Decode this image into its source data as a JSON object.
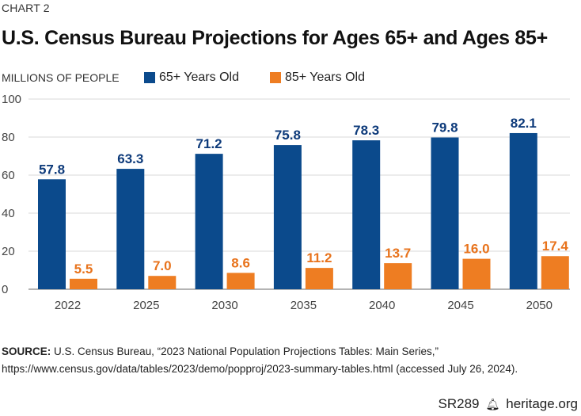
{
  "kicker": "CHART 2",
  "title": "U.S. Census Bureau Projections for Ages 65+ and Ages 85+",
  "unit_label": "MILLIONS OF PEOPLE",
  "colors": {
    "series1": "#0b4a8c",
    "series2": "#ee7d22",
    "label1": "#0d3a7a",
    "label2": "#e8731c",
    "grid": "#e6e6e6",
    "axis": "#888888"
  },
  "chart_data": {
    "type": "bar",
    "title": "U.S. Census Bureau Projections for Ages 65+ and Ages 85+",
    "xlabel": "",
    "ylabel": "MILLIONS OF PEOPLE",
    "ylim": [
      0,
      100
    ],
    "yticks": [
      0,
      20,
      40,
      60,
      80,
      100
    ],
    "grid": true,
    "legend": "top-left",
    "categories": [
      "2022",
      "2025",
      "2030",
      "2035",
      "2040",
      "2045",
      "2050"
    ],
    "series": [
      {
        "name": "65+ Years Old",
        "values": [
          57.8,
          63.3,
          71.2,
          75.8,
          78.3,
          79.8,
          82.1
        ],
        "labels": [
          "57.8",
          "63.3",
          "71.2",
          "75.8",
          "78.3",
          "79.8",
          "82.1"
        ]
      },
      {
        "name": "85+ Years Old",
        "values": [
          5.5,
          7.0,
          8.6,
          11.2,
          13.7,
          16.0,
          17.4
        ],
        "labels": [
          "5.5",
          "7.0",
          "8.6",
          "11.2",
          "13.7",
          "16.0",
          "17.4"
        ]
      }
    ]
  },
  "source": {
    "label": "SOURCE:",
    "text": " U.S. Census Bureau, “2023 National Population Projections Tables: Main Series,”",
    "line2": "https://www.census.gov/data/tables/2023/demo/popproj/2023-summary-tables.html (accessed July 26, 2024)."
  },
  "footer": {
    "report_id": "SR289",
    "icon": "liberty-bell-icon",
    "site": "heritage.org"
  }
}
